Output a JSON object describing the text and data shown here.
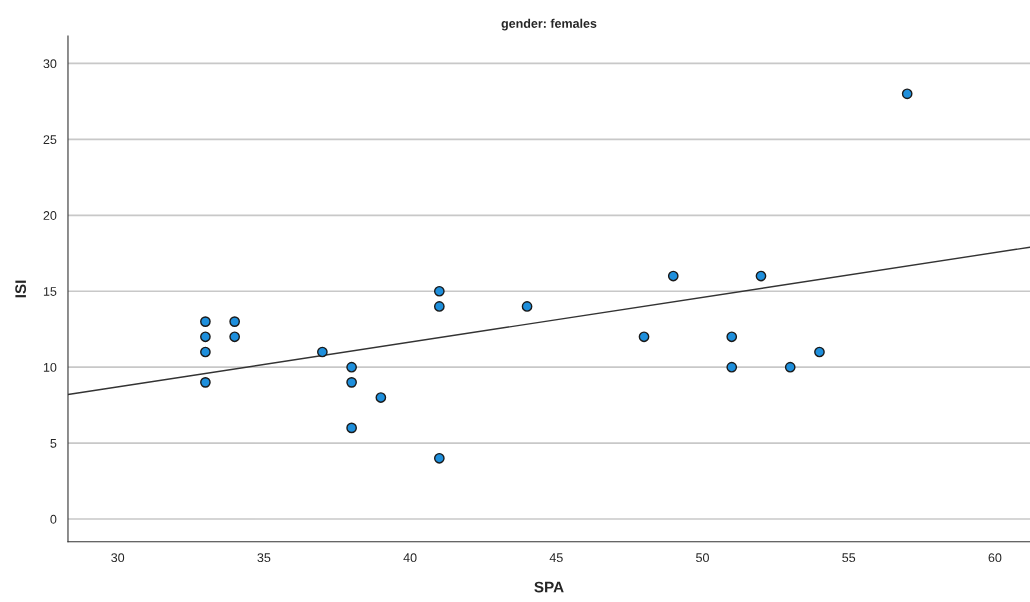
{
  "chart_data": {
    "type": "scatter",
    "title": "gender: females",
    "xlabel": "SPA",
    "ylabel": "ISI",
    "xlim": [
      28.3,
      61.2
    ],
    "ylim": [
      -1.5,
      31.8
    ],
    "xticks": [
      30,
      35,
      40,
      45,
      50,
      55,
      60
    ],
    "yticks": [
      0,
      5,
      10,
      15,
      20,
      25,
      30
    ],
    "grid": "y",
    "series": [
      {
        "marker": "circle",
        "color": "#1e8fdc",
        "x": [
          33,
          33,
          33,
          33,
          34,
          34,
          37,
          38,
          38,
          38,
          39,
          41,
          41,
          41,
          44,
          48,
          49,
          51,
          51,
          52,
          53,
          54,
          57
        ],
        "values": [
          13,
          12,
          11,
          9,
          13,
          12,
          11,
          10,
          9,
          6,
          8,
          15,
          14,
          4,
          14,
          12,
          16,
          12,
          10,
          16,
          10,
          11,
          28
        ]
      },
      {
        "type": "line",
        "color": "#333333",
        "x": [
          28.3,
          61.2
        ],
        "values": [
          8.2,
          17.9
        ]
      }
    ]
  }
}
